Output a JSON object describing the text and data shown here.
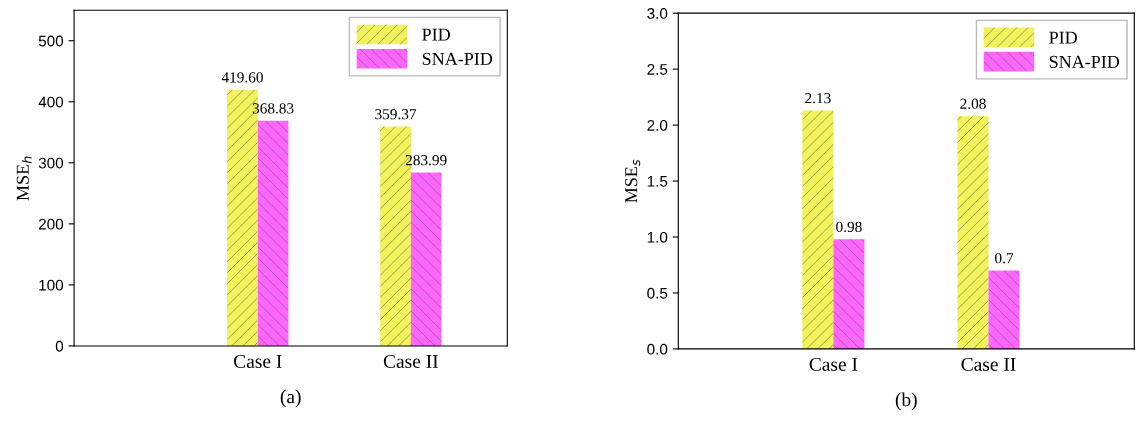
{
  "chart_data": [
    {
      "type": "bar",
      "categories": [
        "Case I",
        "Case II"
      ],
      "ylabel": "MSE$_{h}$",
      "ylim": [
        0,
        550
      ],
      "yticks": [
        0,
        100,
        200,
        300,
        400,
        500
      ],
      "legend": "top right",
      "annotations": [
        "(a)"
      ],
      "series": [
        {
          "name": "PID",
          "color": "#f2f25a",
          "values": [
            419.6,
            359.37
          ],
          "value_labels": [
            "419.60",
            "359.37"
          ]
        },
        {
          "name": "SNA-PID",
          "color": "#ff66ff",
          "values": [
            368.83,
            283.99
          ],
          "value_labels": [
            "368.83",
            "283.99"
          ]
        }
      ]
    },
    {
      "type": "bar",
      "categories": [
        "Case I",
        "Case II"
      ],
      "ylabel": "MSE$_{s}$",
      "ylim": [
        0,
        3.0
      ],
      "yticks": [
        {
          "value": 0,
          "label": "0.0"
        },
        0.5,
        {
          "value": 1,
          "label": "1.0"
        },
        1.5,
        {
          "value": 2,
          "label": "2.0"
        },
        2.5,
        {
          "value": 3,
          "label": "3.0"
        }
      ],
      "legend": "top right",
      "annotations": [
        "(b)"
      ],
      "series": [
        {
          "name": "PID",
          "color": "#f2f25a",
          "values": [
            2.13,
            2.08
          ],
          "value_labels": [
            "2.13",
            "2.08"
          ]
        },
        {
          "name": "SNA-PID",
          "color": "#ff66ff",
          "values": [
            0.98,
            0.7
          ],
          "value_labels": [
            "0.98",
            "0.7"
          ]
        }
      ]
    }
  ]
}
